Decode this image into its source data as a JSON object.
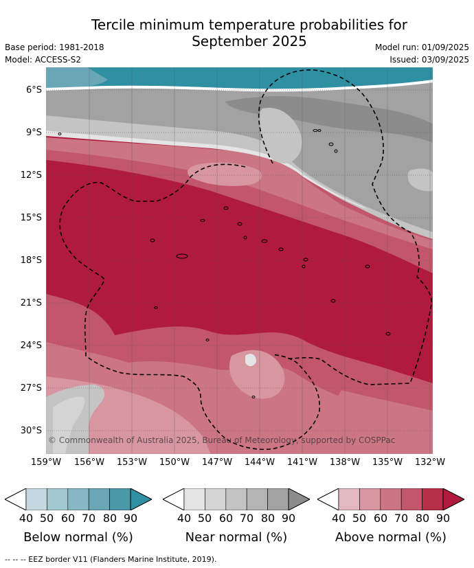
{
  "title_line1": "Tercile minimum temperature probabilities for",
  "title_line2": "September 2025",
  "meta_left": [
    "Base period: 1981-2018",
    "Model: ACCESS-S2"
  ],
  "meta_right": [
    "Model run: 01/09/2025",
    "Issued: 03/09/2025"
  ],
  "y_labels": [
    "6°S",
    "9°S",
    "12°S",
    "15°S",
    "18°S",
    "21°S",
    "24°S",
    "27°S",
    "30°S"
  ],
  "x_labels": [
    "159°W",
    "156°W",
    "153°W",
    "150°W",
    "147°W",
    "144°W",
    "141°W",
    "138°W",
    "135°W",
    "132°W"
  ],
  "copyright": "© Commonwealth of Australia 2025, Bureau of Meteorology, supported by COSPPac",
  "colorbars": [
    {
      "title": "Below normal (%)",
      "ticks": [
        "40",
        "50",
        "60",
        "70",
        "80",
        "90"
      ],
      "colors": [
        "#c3d9df",
        "#a4c8d1",
        "#87b7c4",
        "#69a6b6",
        "#4a98a8"
      ],
      "extend": "#2e90a2"
    },
    {
      "title": "Near normal (%)",
      "ticks": [
        "40",
        "50",
        "60",
        "70",
        "80",
        "90"
      ],
      "colors": [
        "#e4e4e4",
        "#d4d4d4",
        "#c4c4c4",
        "#b4b4b4",
        "#a2a2a2"
      ],
      "extend": "#8c8c8c"
    },
    {
      "title": "Above normal (%)",
      "ticks": [
        "40",
        "50",
        "60",
        "70",
        "80",
        "90"
      ],
      "colors": [
        "#e2b9c0",
        "#d896a0",
        "#cc7684",
        "#c2566a",
        "#b52f48"
      ],
      "extend": "#b01a3c"
    }
  ],
  "footer": "-- -- -- EEZ border V11 (Flanders Marine Institute, 2019)."
}
